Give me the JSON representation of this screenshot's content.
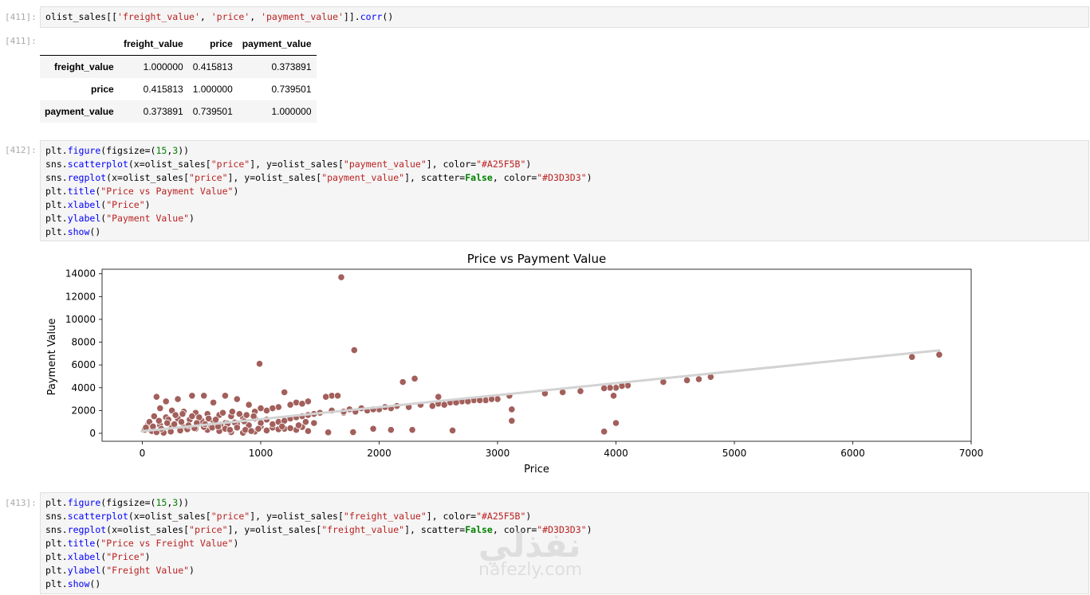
{
  "cells": [
    {
      "prompt_in": "[411]:",
      "code_lines": [
        [
          {
            "t": "olist_sales[[",
            "c": "k"
          },
          {
            "t": "'freight_value'",
            "c": "s"
          },
          {
            "t": ", ",
            "c": "k"
          },
          {
            "t": "'price'",
            "c": "s"
          },
          {
            "t": ", ",
            "c": "k"
          },
          {
            "t": "'payment_value'",
            "c": "s"
          },
          {
            "t": "]].",
            "c": "k"
          },
          {
            "t": "corr",
            "c": "fn"
          },
          {
            "t": "()",
            "c": "k"
          }
        ]
      ]
    },
    {
      "prompt_in": "[412]:",
      "code_lines": [
        [
          {
            "t": "plt.",
            "c": "k"
          },
          {
            "t": "figure",
            "c": "fn"
          },
          {
            "t": "(figsize=(",
            "c": "k"
          },
          {
            "t": "15",
            "c": "n"
          },
          {
            "t": ",",
            "c": "k"
          },
          {
            "t": "3",
            "c": "n"
          },
          {
            "t": "))",
            "c": "k"
          }
        ],
        [
          {
            "t": "sns.",
            "c": "k"
          },
          {
            "t": "scatterplot",
            "c": "fn"
          },
          {
            "t": "(x=olist_sales[",
            "c": "k"
          },
          {
            "t": "\"price\"",
            "c": "s"
          },
          {
            "t": "], y=olist_sales[",
            "c": "k"
          },
          {
            "t": "\"payment_value\"",
            "c": "s"
          },
          {
            "t": "], color=",
            "c": "k"
          },
          {
            "t": "\"#A25F5B\"",
            "c": "s"
          },
          {
            "t": ")",
            "c": "k"
          }
        ],
        [
          {
            "t": "sns.",
            "c": "k"
          },
          {
            "t": "regplot",
            "c": "fn"
          },
          {
            "t": "(x=olist_sales[",
            "c": "k"
          },
          {
            "t": "\"price\"",
            "c": "s"
          },
          {
            "t": "], y=olist_sales[",
            "c": "k"
          },
          {
            "t": "\"payment_value\"",
            "c": "s"
          },
          {
            "t": "], scatter=",
            "c": "k"
          },
          {
            "t": "False",
            "c": "kw"
          },
          {
            "t": ", color=",
            "c": "k"
          },
          {
            "t": "\"#D3D3D3\"",
            "c": "s"
          },
          {
            "t": ")",
            "c": "k"
          }
        ],
        [
          {
            "t": "plt.",
            "c": "k"
          },
          {
            "t": "title",
            "c": "fn"
          },
          {
            "t": "(",
            "c": "k"
          },
          {
            "t": "\"Price vs Payment Value\"",
            "c": "s"
          },
          {
            "t": ")",
            "c": "k"
          }
        ],
        [
          {
            "t": "plt.",
            "c": "k"
          },
          {
            "t": "xlabel",
            "c": "fn"
          },
          {
            "t": "(",
            "c": "k"
          },
          {
            "t": "\"Price\"",
            "c": "s"
          },
          {
            "t": ")",
            "c": "k"
          }
        ],
        [
          {
            "t": "plt.",
            "c": "k"
          },
          {
            "t": "ylabel",
            "c": "fn"
          },
          {
            "t": "(",
            "c": "k"
          },
          {
            "t": "\"Payment Value\"",
            "c": "s"
          },
          {
            "t": ")",
            "c": "k"
          }
        ],
        [
          {
            "t": "plt.",
            "c": "k"
          },
          {
            "t": "show",
            "c": "fn"
          },
          {
            "t": "()",
            "c": "k"
          }
        ]
      ]
    },
    {
      "prompt_in": "[413]:",
      "code_lines": [
        [
          {
            "t": "plt.",
            "c": "k"
          },
          {
            "t": "figure",
            "c": "fn"
          },
          {
            "t": "(figsize=(",
            "c": "k"
          },
          {
            "t": "15",
            "c": "n"
          },
          {
            "t": ",",
            "c": "k"
          },
          {
            "t": "3",
            "c": "n"
          },
          {
            "t": "))",
            "c": "k"
          }
        ],
        [
          {
            "t": "sns.",
            "c": "k"
          },
          {
            "t": "scatterplot",
            "c": "fn"
          },
          {
            "t": "(x=olist_sales[",
            "c": "k"
          },
          {
            "t": "\"price\"",
            "c": "s"
          },
          {
            "t": "], y=olist_sales[",
            "c": "k"
          },
          {
            "t": "\"freight_value\"",
            "c": "s"
          },
          {
            "t": "], color=",
            "c": "k"
          },
          {
            "t": "\"#A25F5B\"",
            "c": "s"
          },
          {
            "t": ")",
            "c": "k"
          }
        ],
        [
          {
            "t": "sns.",
            "c": "k"
          },
          {
            "t": "regplot",
            "c": "fn"
          },
          {
            "t": "(x=olist_sales[",
            "c": "k"
          },
          {
            "t": "\"price\"",
            "c": "s"
          },
          {
            "t": "], y=olist_sales[",
            "c": "k"
          },
          {
            "t": "\"freight_value\"",
            "c": "s"
          },
          {
            "t": "], scatter=",
            "c": "k"
          },
          {
            "t": "False",
            "c": "kw"
          },
          {
            "t": ", color=",
            "c": "k"
          },
          {
            "t": "\"#D3D3D3\"",
            "c": "s"
          },
          {
            "t": ")",
            "c": "k"
          }
        ],
        [
          {
            "t": "plt.",
            "c": "k"
          },
          {
            "t": "title",
            "c": "fn"
          },
          {
            "t": "(",
            "c": "k"
          },
          {
            "t": "\"Price vs Freight Value\"",
            "c": "s"
          },
          {
            "t": ")",
            "c": "k"
          }
        ],
        [
          {
            "t": "plt.",
            "c": "k"
          },
          {
            "t": "xlabel",
            "c": "fn"
          },
          {
            "t": "(",
            "c": "k"
          },
          {
            "t": "\"Price\"",
            "c": "s"
          },
          {
            "t": ")",
            "c": "k"
          }
        ],
        [
          {
            "t": "plt.",
            "c": "k"
          },
          {
            "t": "ylabel",
            "c": "fn"
          },
          {
            "t": "(",
            "c": "k"
          },
          {
            "t": "\"Freight Value\"",
            "c": "s"
          },
          {
            "t": ")",
            "c": "k"
          }
        ],
        [
          {
            "t": "plt.",
            "c": "k"
          },
          {
            "t": "show",
            "c": "fn"
          },
          {
            "t": "()",
            "c": "k"
          }
        ]
      ]
    }
  ],
  "output_prompt": "[411]:",
  "corr_table": {
    "columns": [
      "",
      "freight_value",
      "price",
      "payment_value"
    ],
    "rows": [
      {
        "label": "freight_value",
        "values": [
          "1.000000",
          "0.415813",
          "0.373891"
        ]
      },
      {
        "label": "price",
        "values": [
          "0.415813",
          "1.000000",
          "0.739501"
        ]
      },
      {
        "label": "payment_value",
        "values": [
          "0.373891",
          "0.739501",
          "1.000000"
        ]
      }
    ]
  },
  "chart_data": {
    "type": "scatter",
    "title": "Price vs Payment Value",
    "xlabel": "Price",
    "ylabel": "Payment Value",
    "xlim": [
      -340,
      7000
    ],
    "ylim": [
      -700,
      14400
    ],
    "xticks": [
      0,
      1000,
      2000,
      3000,
      4000,
      5000,
      6000,
      7000
    ],
    "yticks": [
      0,
      2000,
      4000,
      6000,
      8000,
      10000,
      12000,
      14000
    ],
    "point_color": "#A25F5B",
    "regression_color": "#D3D3D3",
    "regression_line": [
      [
        -5,
        180
      ],
      [
        6730,
        7280
      ]
    ],
    "series": [
      {
        "points": [
          [
            1680,
            13700
          ],
          [
            1790,
            7300
          ],
          [
            990,
            6100
          ],
          [
            6730,
            6900
          ],
          [
            6500,
            6700
          ],
          [
            4800,
            4950
          ],
          [
            4700,
            4750
          ],
          [
            4600,
            4650
          ],
          [
            4400,
            4500
          ],
          [
            4100,
            4200
          ],
          [
            4050,
            4150
          ],
          [
            4000,
            4000
          ],
          [
            3950,
            4000
          ],
          [
            3900,
            3950
          ],
          [
            3980,
            3300
          ],
          [
            3700,
            3700
          ],
          [
            3550,
            3600
          ],
          [
            3400,
            3500
          ],
          [
            3100,
            3300
          ],
          [
            3000,
            3000
          ],
          [
            2900,
            2900
          ],
          [
            2800,
            2900
          ],
          [
            2700,
            2800
          ],
          [
            2600,
            2700
          ],
          [
            2500,
            2600
          ],
          [
            2500,
            3200
          ],
          [
            2300,
            4800
          ],
          [
            2200,
            4500
          ],
          [
            2100,
            2200
          ],
          [
            2000,
            2100
          ],
          [
            1900,
            2000
          ],
          [
            1800,
            1900
          ],
          [
            1700,
            1800
          ],
          [
            1600,
            3300
          ],
          [
            1550,
            3200
          ],
          [
            1650,
            3300
          ],
          [
            1200,
            3600
          ],
          [
            1300,
            2700
          ],
          [
            1400,
            2800
          ],
          [
            1350,
            2600
          ],
          [
            1250,
            2500
          ],
          [
            1150,
            2300
          ],
          [
            1100,
            2200
          ],
          [
            1050,
            2000
          ],
          [
            950,
            1900
          ],
          [
            3120,
            1100
          ],
          [
            3120,
            2100
          ],
          [
            2620,
            250
          ],
          [
            2280,
            300
          ],
          [
            2100,
            300
          ],
          [
            1950,
            400
          ],
          [
            1780,
            100
          ],
          [
            1570,
            80
          ],
          [
            4000,
            900
          ],
          [
            3900,
            150
          ],
          [
            800,
            3000
          ],
          [
            700,
            3300
          ],
          [
            520,
            3300
          ],
          [
            420,
            3300
          ],
          [
            300,
            3000
          ],
          [
            120,
            3200
          ],
          [
            200,
            2800
          ],
          [
            600,
            2700
          ],
          [
            900,
            2500
          ],
          [
            1000,
            2200
          ],
          [
            150,
            2200
          ],
          [
            250,
            2000
          ],
          [
            350,
            1900
          ],
          [
            450,
            1800
          ],
          [
            550,
            1700
          ],
          [
            650,
            1600
          ],
          [
            750,
            1500
          ],
          [
            850,
            1400
          ],
          [
            950,
            1300
          ],
          [
            1050,
            1200
          ],
          [
            100,
            1500
          ],
          [
            200,
            1400
          ],
          [
            300,
            1300
          ],
          [
            400,
            1200
          ],
          [
            500,
            1100
          ],
          [
            600,
            1000
          ],
          [
            700,
            900
          ],
          [
            800,
            800
          ],
          [
            900,
            700
          ],
          [
            1000,
            600
          ],
          [
            1100,
            500
          ],
          [
            1200,
            400
          ],
          [
            1300,
            300
          ],
          [
            1400,
            200
          ],
          [
            50,
            800
          ],
          [
            150,
            700
          ],
          [
            250,
            600
          ],
          [
            350,
            500
          ],
          [
            450,
            400
          ],
          [
            550,
            300
          ],
          [
            650,
            200
          ],
          [
            750,
            100
          ],
          [
            850,
            50
          ],
          [
            950,
            150
          ],
          [
            1050,
            250
          ],
          [
            1150,
            350
          ],
          [
            1250,
            450
          ],
          [
            1350,
            550
          ],
          [
            20,
            300
          ],
          [
            80,
            200
          ],
          [
            120,
            100
          ],
          [
            180,
            50
          ],
          [
            240,
            150
          ],
          [
            320,
            250
          ],
          [
            380,
            350
          ],
          [
            440,
            450
          ],
          [
            520,
            550
          ],
          [
            580,
            650
          ],
          [
            660,
            750
          ],
          [
            720,
            850
          ],
          [
            780,
            950
          ],
          [
            860,
            1050
          ],
          [
            60,
            1000
          ],
          [
            140,
            1100
          ],
          [
            220,
            1200
          ],
          [
            280,
            1600
          ],
          [
            340,
            1700
          ],
          [
            420,
            1500
          ],
          [
            480,
            1400
          ],
          [
            560,
            1300
          ],
          [
            620,
            1200
          ],
          [
            680,
            1800
          ],
          [
            760,
            1900
          ],
          [
            820,
            1700
          ],
          [
            880,
            1600
          ],
          [
            940,
            1500
          ],
          [
            1000,
            900
          ],
          [
            1100,
            800
          ],
          [
            1150,
            1000
          ],
          [
            1200,
            1100
          ],
          [
            1250,
            1300
          ],
          [
            1300,
            1400
          ],
          [
            1350,
            1500
          ],
          [
            1400,
            1600
          ],
          [
            1450,
            1700
          ],
          [
            1500,
            1800
          ],
          [
            1450,
            900
          ],
          [
            1380,
            1000
          ],
          [
            1320,
            700
          ],
          [
            1180,
            600
          ],
          [
            30,
            500
          ],
          [
            90,
            600
          ],
          [
            160,
            400
          ],
          [
            210,
            900
          ],
          [
            270,
            800
          ],
          [
            330,
            1000
          ],
          [
            390,
            700
          ],
          [
            460,
            900
          ],
          [
            530,
            800
          ],
          [
            590,
            500
          ],
          [
            640,
            600
          ],
          [
            700,
            400
          ],
          [
            740,
            300
          ],
          [
            800,
            500
          ],
          [
            870,
            300
          ],
          [
            920,
            200
          ],
          [
            980,
            400
          ],
          [
            1600,
            2000
          ],
          [
            1700,
            1900
          ],
          [
            1750,
            2100
          ],
          [
            1850,
            2200
          ],
          [
            1950,
            2100
          ],
          [
            2050,
            2300
          ],
          [
            2150,
            2400
          ],
          [
            2250,
            2300
          ],
          [
            2350,
            2500
          ],
          [
            2450,
            2400
          ],
          [
            2550,
            2500
          ],
          [
            2650,
            2700
          ],
          [
            2750,
            2800
          ],
          [
            2850,
            2900
          ],
          [
            2950,
            3000
          ]
        ]
      }
    ]
  }
}
